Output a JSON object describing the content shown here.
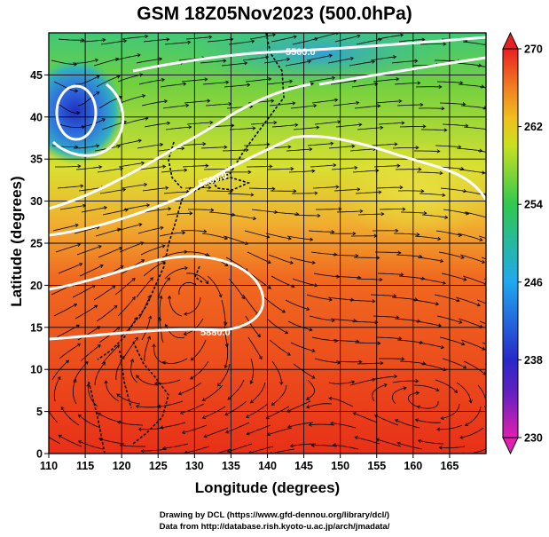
{
  "title": "GSM 18Z05Nov2023 (500.0hPa)",
  "x_axis": {
    "label": "Longitude (degrees)",
    "range": [
      110,
      170
    ],
    "ticks": [
      "110",
      "115",
      "120",
      "125",
      "130",
      "135",
      "140",
      "145",
      "150",
      "155",
      "160",
      "165"
    ]
  },
  "y_axis": {
    "label": "Latitude  (degrees)",
    "range": [
      0,
      50
    ],
    "ticks": [
      "0",
      "5",
      "10",
      "15",
      "20",
      "25",
      "30",
      "35",
      "40",
      "45"
    ]
  },
  "colorbar": {
    "range": [
      230,
      270
    ],
    "ticks": [
      "230",
      "238",
      "246",
      "254",
      "262",
      "270"
    ],
    "colors": [
      "#e020b0",
      "#2828c8",
      "#20a8f0",
      "#30c850",
      "#f0e020",
      "#f08020",
      "#e82020"
    ]
  },
  "contours": [
    {
      "label": "5880.0",
      "value": 5880
    },
    {
      "label": "5700.0",
      "value": 5700
    },
    {
      "label": "5500.0",
      "value": 5500
    }
  ],
  "credits": {
    "line1": "Drawing by DCL (https://www.gfd-dennou.org/library/dcl/)",
    "line2": "Data from http://database.rish.kyoto-u.ac.jp/arch/jmadata/"
  }
}
